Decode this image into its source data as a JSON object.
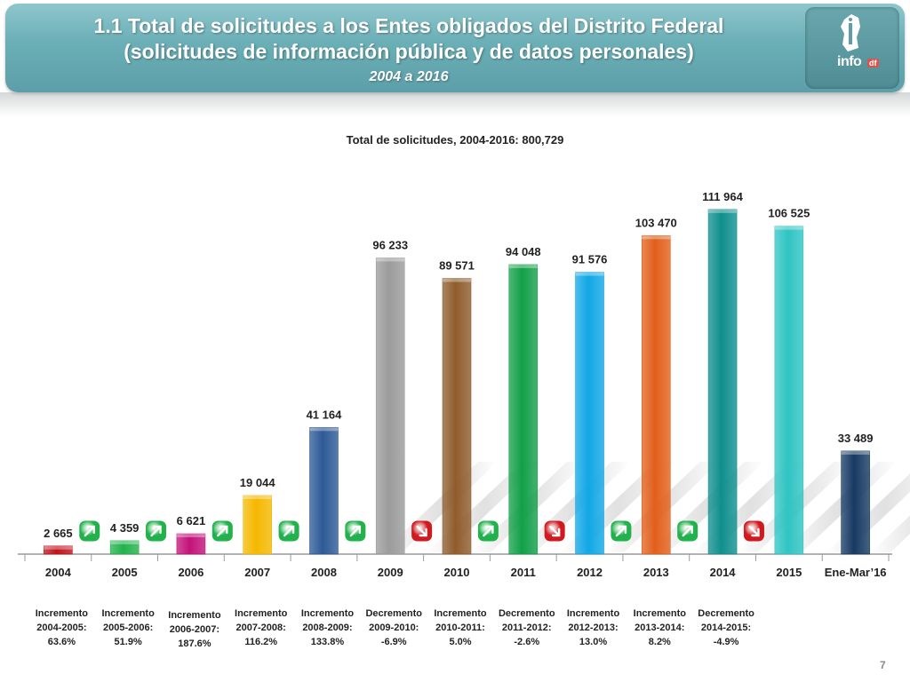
{
  "header": {
    "title_line1": "1.1 Total de solicitudes a los Entes obligados del Distrito Federal",
    "title_line2": "(solicitudes de información pública y de datos personales)",
    "subtitle": "2004 a 2016",
    "logo_text": "info",
    "logo_small_text": "df"
  },
  "page_number": "7",
  "chart_data": {
    "type": "bar",
    "title": "Total de solicitudes, 2004-2016: 800,729",
    "xlabel": "",
    "ylabel": "",
    "ylim": [
      0,
      120000
    ],
    "grid": false,
    "categories": [
      "2004",
      "2005",
      "2006",
      "2007",
      "2008",
      "2009",
      "2010",
      "2011",
      "2012",
      "2013",
      "2014",
      "2015",
      "Ene-Mar’16"
    ],
    "values": [
      2665,
      4359,
      6621,
      19044,
      41164,
      96233,
      89571,
      94048,
      91576,
      103470,
      111964,
      106525,
      33489
    ],
    "value_labels": [
      "2 665",
      "4 359",
      "6 621",
      "19 044",
      "41 164",
      "96 233",
      "89 571",
      "94 048",
      "91 576",
      "103 470",
      "111 964",
      "106 525",
      "33 489"
    ],
    "colors": [
      "#c0131b",
      "#22b24c",
      "#c2127a",
      "#f5b800",
      "#2e5a96",
      "#9b9b9b",
      "#8f5c2c",
      "#12a048",
      "#11a7e6",
      "#e25f1b",
      "#0f8f8e",
      "#2fc4c3",
      "#173a63"
    ],
    "changes": [
      {
        "line1": "Incremento",
        "line2": "2004-2005:",
        "value": "63.6%",
        "direction": "up"
      },
      {
        "line1": "Incremento",
        "line2": "2005-2006:",
        "value": "51.9%",
        "direction": "up"
      },
      {
        "line1": "Incremento",
        "line2": "2006-2007:",
        "value": "187.6%",
        "direction": "up"
      },
      {
        "line1": "Incremento",
        "line2": "2007-2008:",
        "value": "116.2%",
        "direction": "up"
      },
      {
        "line1": "Incremento",
        "line2": "2008-2009:",
        "value": "133.8%",
        "direction": "up"
      },
      {
        "line1": "Decremento",
        "line2": "2009-2010:",
        "value": "-6.9%",
        "direction": "down"
      },
      {
        "line1": "Incremento",
        "line2": "2010-2011:",
        "value": "5.0%",
        "direction": "up"
      },
      {
        "line1": "Decremento",
        "line2": "2011-2012:",
        "value": "-2.6%",
        "direction": "down"
      },
      {
        "line1": "Incremento",
        "line2": "2012-2013:",
        "value": "13.0%",
        "direction": "up"
      },
      {
        "line1": "Incremento",
        "line2": "2013-2014:",
        "value": "8.2%",
        "direction": "up"
      },
      {
        "line1": "Decremento",
        "line2": "2014-2015:",
        "value": "-4.9%",
        "direction": "down"
      }
    ],
    "arrow_colors": {
      "up": "#22b24c",
      "down": "#d11a1f"
    }
  }
}
